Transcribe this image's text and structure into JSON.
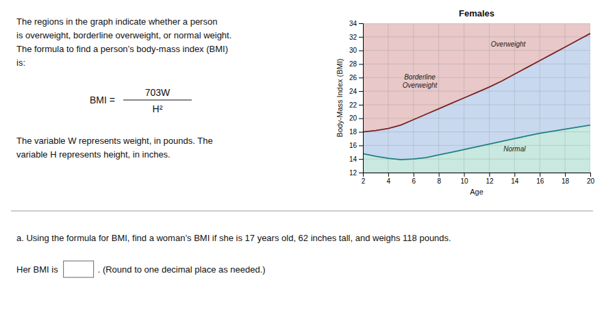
{
  "chart_data": {
    "type": "line",
    "title": "Females",
    "x_label": "Age",
    "y_label": "Body-Mass Index (BMI)",
    "xlim": [
      2,
      20
    ],
    "ylim": [
      12,
      34
    ],
    "xticks": [
      2,
      4,
      6,
      8,
      10,
      12,
      14,
      16,
      18,
      20
    ],
    "yticks": [
      12,
      14,
      16,
      18,
      20,
      22,
      24,
      26,
      28,
      30,
      32,
      34
    ],
    "grid": true,
    "series": [
      {
        "color": "#7a2020",
        "x": [
          2,
          3,
          4,
          5,
          6,
          7,
          8,
          9,
          10,
          11,
          12,
          13,
          14,
          15,
          16,
          17,
          18,
          19,
          20
        ],
        "values": [
          18.0,
          18.2,
          18.5,
          19.0,
          19.8,
          20.6,
          21.4,
          22.2,
          23.0,
          23.8,
          24.6,
          25.5,
          26.5,
          27.5,
          28.5,
          29.5,
          30.5,
          31.5,
          32.5
        ]
      },
      {
        "color": "#208080",
        "x": [
          2,
          3,
          4,
          5,
          6,
          7,
          8,
          9,
          10,
          11,
          12,
          13,
          14,
          15,
          16,
          17,
          18,
          19,
          20
        ],
        "values": [
          14.8,
          14.4,
          14.1,
          13.9,
          14.0,
          14.2,
          14.6,
          15.0,
          15.4,
          15.8,
          16.2,
          16.6,
          17.0,
          17.4,
          17.8,
          18.1,
          18.4,
          18.7,
          19.0
        ]
      }
    ],
    "annotations": [
      {
        "text": "Overweight",
        "x": 13.5,
        "y": 31.0,
        "color": "#e8c8c8"
      },
      {
        "text": "Borderline\nOverweight",
        "x": 6.5,
        "y": 25.5,
        "color": "#c8d8ee"
      },
      {
        "text": "Normal",
        "x": 14.0,
        "y": 15.5,
        "color": "#c8e8e0"
      }
    ]
  },
  "paragraph": "The regions in the graph indicate whether a person\nis overweight, borderline overweight, or normal weight.\nThe formula to find a person’s body-mass index (BMI)\nis:",
  "formula": {
    "left": "BMI =",
    "numerator": "703W",
    "denominator": "H²"
  },
  "variables": "The variable W represents weight, in pounds.  The\nvariable H represents height, in inches.",
  "question": "a.  Using the formula for BMI, find a woman’s BMI if she is 17 years old, 62 inches tall, and weighs 118 pounds.",
  "answer_prefix": "Her BMI is",
  "answer_suffix": ".  (Round to one decimal place as needed.)"
}
